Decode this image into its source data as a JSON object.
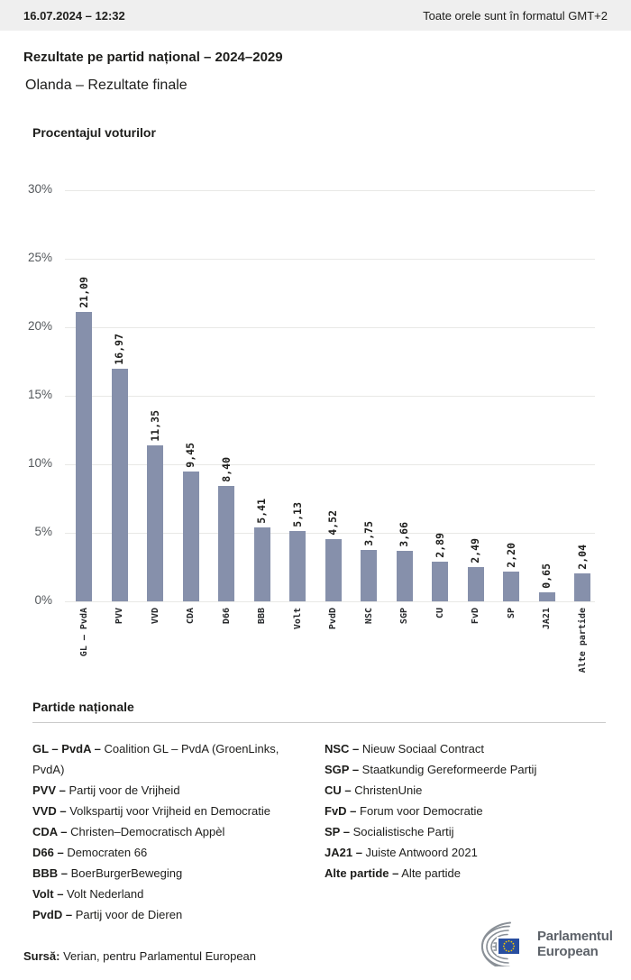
{
  "header": {
    "datetime": "16.07.2024 – 12:32",
    "timezone_note": "Toate orele sunt în formatul GMT+2"
  },
  "page": {
    "title": "Rezultate pe partid național – 2024–2029",
    "subtitle": "Olanda – Rezultate finale"
  },
  "chart_data": {
    "type": "bar",
    "title": "Procentajul voturilor",
    "categories": [
      "GL – PvdA",
      "PVV",
      "VVD",
      "CDA",
      "D66",
      "BBB",
      "Volt",
      "PvdD",
      "NSC",
      "SGP",
      "CU",
      "FvD",
      "SP",
      "JA21",
      "Alte partide"
    ],
    "values": [
      21.09,
      16.97,
      11.35,
      9.45,
      8.4,
      5.41,
      5.13,
      4.52,
      3.75,
      3.66,
      2.89,
      2.49,
      2.2,
      0.65,
      2.04
    ],
    "value_labels": [
      "21,09",
      "16,97",
      "11,35",
      "9,45",
      "8,40",
      "5,41",
      "5,13",
      "4,52",
      "3,75",
      "3,66",
      "2,89",
      "2,49",
      "2,20",
      "0,65",
      "2,04"
    ],
    "xlabel": "",
    "ylabel": "",
    "ylim": [
      0,
      30
    ],
    "ytick_values": [
      0,
      5,
      10,
      15,
      20,
      25,
      30
    ],
    "ytick_labels": [
      "0%",
      "5%",
      "10%",
      "15%",
      "20%",
      "25%",
      "30%"
    ],
    "grid": true,
    "legend_position": "none",
    "bar_color": "#8690ab"
  },
  "parties_section": {
    "heading": "Partide naționale",
    "left_column": [
      {
        "abbr": "GL – PvdA –",
        "name": "Coalition GL – PvdA (GroenLinks, PvdA)"
      },
      {
        "abbr": "PVV –",
        "name": "Partij voor de Vrijheid"
      },
      {
        "abbr": "VVD –",
        "name": "Volkspartij voor Vrijheid en Democratie"
      },
      {
        "abbr": "CDA –",
        "name": "Christen–Democratisch Appèl"
      },
      {
        "abbr": "D66 –",
        "name": "Democraten 66"
      },
      {
        "abbr": "BBB –",
        "name": "BoerBurgerBeweging"
      },
      {
        "abbr": "Volt –",
        "name": "Volt Nederland"
      },
      {
        "abbr": "PvdD –",
        "name": "Partij voor de Dieren"
      }
    ],
    "right_column": [
      {
        "abbr": "NSC –",
        "name": "Nieuw Sociaal Contract"
      },
      {
        "abbr": "SGP –",
        "name": "Staatkundig Gereformeerde Partij"
      },
      {
        "abbr": "CU –",
        "name": "ChristenUnie"
      },
      {
        "abbr": "FvD –",
        "name": "Forum voor Democratie"
      },
      {
        "abbr": "SP –",
        "name": "Socialistische Partij"
      },
      {
        "abbr": "JA21 –",
        "name": "Juiste Antwoord 2021"
      },
      {
        "abbr": "Alte partide –",
        "name": "Alte partide"
      }
    ]
  },
  "footer": {
    "source_label": "Sursă:",
    "source_text": "Verian, pentru Parlamentul European",
    "logo_line1": "Parlamentul",
    "logo_line2": "European"
  }
}
